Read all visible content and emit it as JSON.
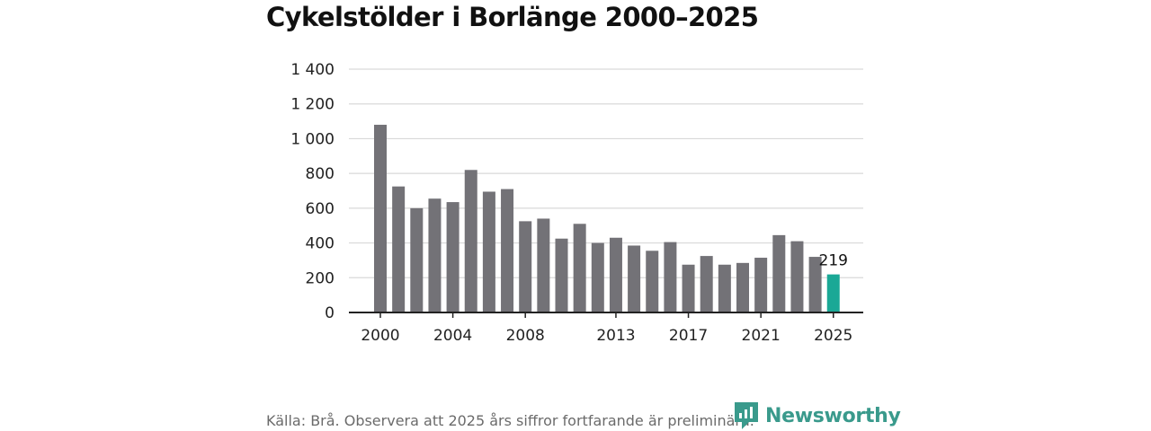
{
  "chart_data": {
    "type": "bar",
    "title": "Cykelstölder i Borlänge 2000–2025",
    "xlabel": "",
    "ylabel": "",
    "ylim": [
      0,
      1400
    ],
    "yticks": [
      0,
      200,
      400,
      600,
      800,
      1000,
      1200,
      1400
    ],
    "ytick_labels": [
      "0",
      "200",
      "400",
      "600",
      "800",
      "1 000",
      "1 200",
      "1 400"
    ],
    "xtick_labels": [
      "2000",
      "2004",
      "2008",
      "2013",
      "2017",
      "2021",
      "2025"
    ],
    "categories": [
      "2000",
      "2001",
      "2002",
      "2003",
      "2004",
      "2005",
      "2006",
      "2007",
      "2008",
      "2009",
      "2010",
      "2011",
      "2012",
      "2013",
      "2014",
      "2015",
      "2016",
      "2017",
      "2018",
      "2019",
      "2020",
      "2021",
      "2022",
      "2023",
      "2024",
      "2025"
    ],
    "values": [
      1080,
      725,
      600,
      655,
      635,
      820,
      695,
      710,
      525,
      540,
      425,
      510,
      400,
      430,
      385,
      355,
      405,
      275,
      325,
      275,
      285,
      315,
      445,
      410,
      320,
      219
    ],
    "highlight": {
      "category": "2025",
      "label": "219"
    },
    "grid": true
  },
  "colors": {
    "bar": "#737277",
    "highlight": "#1aa896",
    "grid": "#d9d9d9",
    "axis": "#222222",
    "brand": "#3a9a8c"
  },
  "footer": {
    "source": "Källa: Brå. Observera att 2025 års siffror fortfarande är preliminära."
  },
  "brand": {
    "name": "Newsworthy",
    "icon": "newsworthy-logo-icon"
  }
}
